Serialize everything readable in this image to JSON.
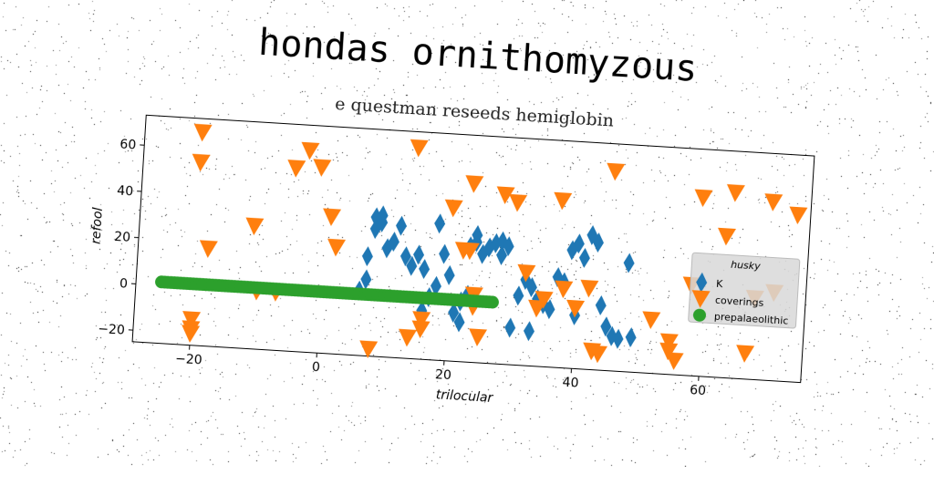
{
  "chart_data": {
    "type": "scatter",
    "title": "hondas ornithomyzous",
    "subtitle": "e questman reseeds hemiglobin",
    "xlabel": "trilocular",
    "ylabel": "refool",
    "xlim": [
      -29,
      76
    ],
    "ylim": [
      -25,
      73
    ],
    "xticks": [
      -20,
      0,
      20,
      40,
      60
    ],
    "yticks": [
      -20,
      0,
      20,
      40,
      60
    ],
    "grid": false,
    "legend": {
      "title": "husky",
      "placement": "right"
    },
    "series": [
      {
        "name": "K",
        "marker": "diamond",
        "color": "#1f77b4",
        "points": [
          [
            6,
            3
          ],
          [
            7,
            8
          ],
          [
            7,
            18
          ],
          [
            8,
            30
          ],
          [
            8,
            35
          ],
          [
            9,
            36
          ],
          [
            9,
            33
          ],
          [
            10,
            22
          ],
          [
            11,
            25
          ],
          [
            12,
            32
          ],
          [
            13,
            19
          ],
          [
            14,
            15
          ],
          [
            15,
            20
          ],
          [
            16,
            14
          ],
          [
            16,
            -4
          ],
          [
            17,
            2
          ],
          [
            18,
            7
          ],
          [
            18,
            34
          ],
          [
            19,
            21
          ],
          [
            20,
            12
          ],
          [
            21,
            -4
          ],
          [
            22,
            -8
          ],
          [
            22,
            1
          ],
          [
            23,
            4
          ],
          [
            23,
            25
          ],
          [
            24,
            30
          ],
          [
            24,
            27
          ],
          [
            25,
            22
          ],
          [
            26,
            25
          ],
          [
            27,
            27
          ],
          [
            28,
            28
          ],
          [
            28,
            22
          ],
          [
            29,
            26
          ],
          [
            30,
            -9
          ],
          [
            31,
            5
          ],
          [
            32,
            12
          ],
          [
            33,
            9
          ],
          [
            33,
            -10
          ],
          [
            34,
            4
          ],
          [
            35,
            2
          ],
          [
            36,
            0
          ],
          [
            37,
            14
          ],
          [
            38,
            12
          ],
          [
            39,
            26
          ],
          [
            40,
            -2
          ],
          [
            40,
            29
          ],
          [
            41,
            23
          ],
          [
            42,
            33
          ],
          [
            43,
            30
          ],
          [
            44,
            3
          ],
          [
            45,
            -6
          ],
          [
            46,
            -10
          ],
          [
            47,
            -11
          ],
          [
            48,
            22
          ],
          [
            49,
            -10
          ]
        ]
      },
      {
        "name": "coverings",
        "marker": "triangle_down",
        "color": "#ff7f0e",
        "points": [
          [
            -20,
            67
          ],
          [
            -20,
            54
          ],
          [
            -20,
            -14
          ],
          [
            -20,
            -18
          ],
          [
            -20,
            -20
          ],
          [
            -18,
            17
          ],
          [
            -11,
            28
          ],
          [
            -10,
            0
          ],
          [
            -7,
            0
          ],
          [
            -5,
            54
          ],
          [
            -3,
            62
          ],
          [
            -1,
            55
          ],
          [
            1,
            34
          ],
          [
            2,
            21
          ],
          [
            8,
            -22
          ],
          [
            14,
            -16
          ],
          [
            14,
            66
          ],
          [
            16,
            -8
          ],
          [
            16,
            -12
          ],
          [
            20,
            41
          ],
          [
            22,
            23
          ],
          [
            23,
            23
          ],
          [
            23,
            52
          ],
          [
            24,
            4
          ],
          [
            24,
            -1
          ],
          [
            25,
            -14
          ],
          [
            28,
            48
          ],
          [
            30,
            45
          ],
          [
            32,
            15
          ],
          [
            34,
            0
          ],
          [
            35,
            4
          ],
          [
            37,
            47
          ],
          [
            38,
            9
          ],
          [
            40,
            1
          ],
          [
            42,
            10
          ],
          [
            43,
            -17
          ],
          [
            44,
            -18
          ],
          [
            45,
            61
          ],
          [
            52,
            -2
          ],
          [
            55,
            -11
          ],
          [
            55,
            -15
          ],
          [
            56,
            -19
          ],
          [
            58,
            14
          ],
          [
            59,
            52
          ],
          [
            63,
            36
          ],
          [
            64,
            55
          ],
          [
            67,
            -14
          ],
          [
            68,
            10
          ],
          [
            70,
            52
          ],
          [
            74,
            47
          ],
          [
            71,
            13
          ]
        ]
      },
      {
        "name": "prepalaeolithic",
        "marker": "circle",
        "color": "#2ca02c",
        "line": [
          -25,
          27,
          1.5
        ]
      }
    ]
  }
}
